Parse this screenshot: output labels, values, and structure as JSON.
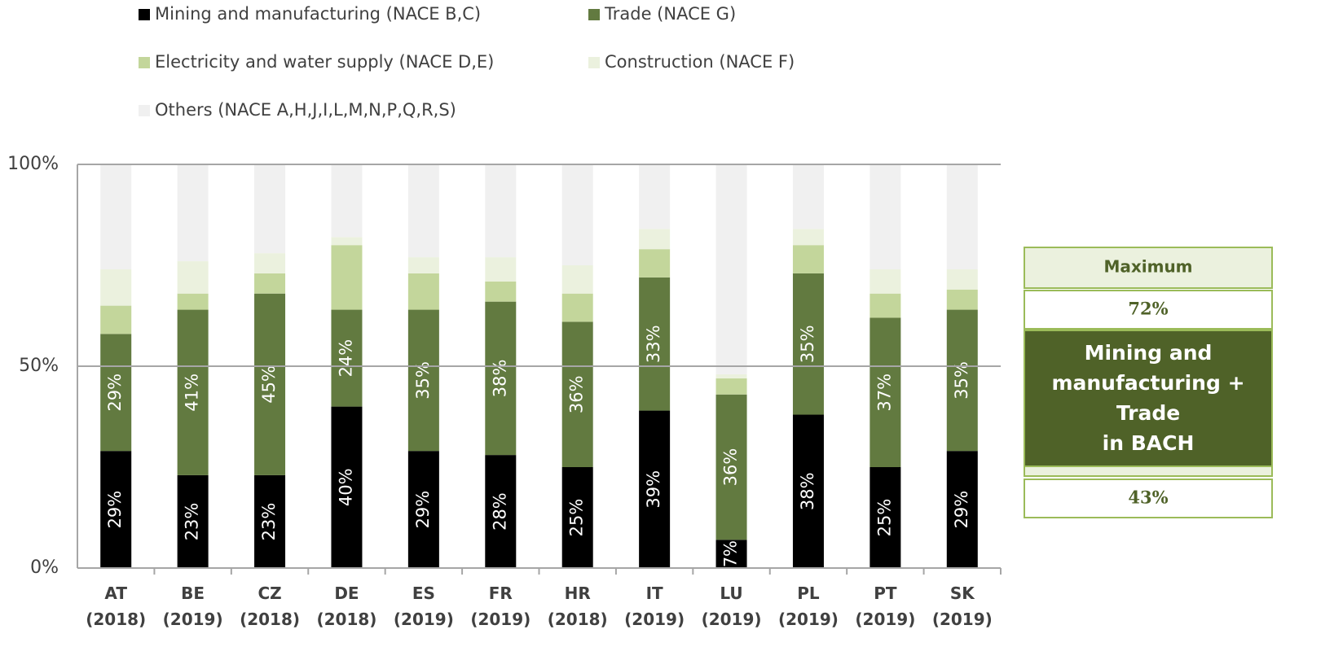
{
  "chart_data": {
    "type": "stacked_bar",
    "categories": [
      "AT (2018)",
      "BE (2019)",
      "CZ (2018)",
      "DE (2018)",
      "ES (2019)",
      "FR (2019)",
      "HR (2018)",
      "IT (2019)",
      "LU (2019)",
      "PL (2019)",
      "PT (2019)",
      "SK (2019)"
    ],
    "series": [
      {
        "name": "Mining and manufacturing (NACE B,C)",
        "color": "#000000",
        "values": [
          29,
          23,
          23,
          40,
          29,
          28,
          25,
          39,
          7,
          38,
          25,
          29
        ],
        "value_labels": [
          "29%",
          "23%",
          "23%",
          "40%",
          "29%",
          "28%",
          "25%",
          "39%",
          "7%",
          "38%",
          "25%",
          "29%"
        ]
      },
      {
        "name": "Trade (NACE G)",
        "color": "#627a40",
        "values": [
          29,
          41,
          45,
          24,
          35,
          38,
          36,
          33,
          36,
          35,
          37,
          35
        ],
        "value_labels": [
          "29%",
          "41%",
          "45%",
          "24%",
          "35%",
          "38%",
          "36%",
          "33%",
          "36%",
          "35%",
          "37%",
          "35%"
        ]
      },
      {
        "name": "Electricity and water supply (NACE D,E)",
        "color": "#c3d69b",
        "values": [
          7,
          4,
          5,
          16,
          9,
          5,
          7,
          7,
          4,
          7,
          6,
          5
        ]
      },
      {
        "name": "Construction (NACE F)",
        "color": "#ebf1de",
        "values": [
          9,
          8,
          5,
          2,
          4,
          6,
          7,
          5,
          1,
          4,
          6,
          5
        ]
      },
      {
        "name": "Others (NACE A,H,J,I,L,M,N,P,Q,R,S)",
        "color": "#f0f0f0",
        "values": [
          26,
          24,
          22,
          18,
          23,
          23,
          25,
          16,
          52,
          16,
          26,
          26
        ]
      }
    ],
    "ylim": [
      0,
      100
    ],
    "yticks": [
      {
        "value": 0,
        "label": "0%"
      },
      {
        "value": 50,
        "label": "50%"
      },
      {
        "value": 100,
        "label": "100%"
      }
    ],
    "grid": true,
    "legend": "top",
    "panel": {
      "header": "Maximum",
      "max": "72%",
      "title": [
        "Mining and",
        "manufacturing +",
        "Trade",
        "in BACH"
      ],
      "min": "43%"
    }
  }
}
